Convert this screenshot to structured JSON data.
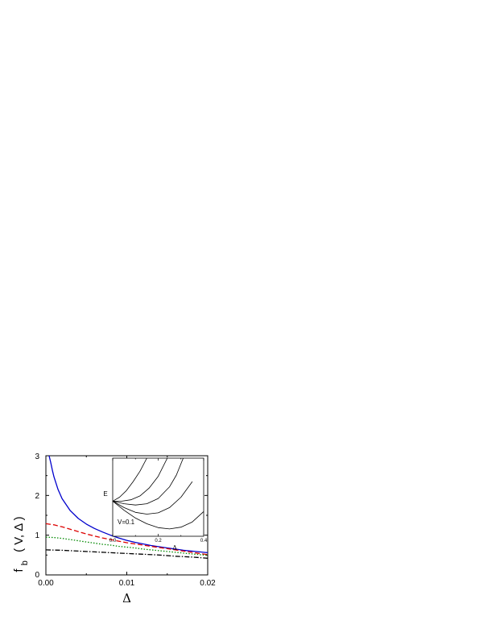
{
  "chart_data": [
    {
      "type": "line",
      "title": "",
      "xlabel": "Δ",
      "ylabel_parts": {
        "f": "f",
        "sub": "b",
        "args": "( V, Δ )"
      },
      "xlim": [
        0,
        0.02
      ],
      "ylim": [
        0,
        3
      ],
      "x_ticks": [
        0.0,
        0.01,
        0.02
      ],
      "x_tick_labels": [
        "0.00",
        "0.01",
        "0.02"
      ],
      "y_ticks": [
        0,
        1,
        2,
        3
      ],
      "y_tick_labels": [
        "0",
        "1",
        "2",
        "3"
      ],
      "grid": false,
      "series": [
        {
          "style": "solid",
          "color": "#0000cc",
          "x": [
            0.0004,
            0.0006,
            0.0008,
            0.001,
            0.0015,
            0.002,
            0.003,
            0.004,
            0.005,
            0.006,
            0.007,
            0.008,
            0.009,
            0.01,
            0.011,
            0.012,
            0.013,
            0.014,
            0.015,
            0.016,
            0.017,
            0.018,
            0.019,
            0.02
          ],
          "y": [
            3.0,
            2.83,
            2.64,
            2.47,
            2.15,
            1.92,
            1.62,
            1.42,
            1.28,
            1.17,
            1.08,
            1.0,
            0.93,
            0.87,
            0.82,
            0.78,
            0.74,
            0.71,
            0.68,
            0.65,
            0.62,
            0.6,
            0.58,
            0.56
          ]
        },
        {
          "style": "dashed",
          "color": "#dd0000",
          "x": [
            0.0,
            0.001,
            0.002,
            0.003,
            0.004,
            0.005,
            0.006,
            0.007,
            0.008,
            0.009,
            0.01,
            0.011,
            0.012,
            0.013,
            0.014,
            0.015,
            0.016,
            0.017,
            0.018,
            0.019,
            0.02
          ],
          "y": [
            1.29,
            1.26,
            1.21,
            1.15,
            1.09,
            1.03,
            0.98,
            0.93,
            0.89,
            0.85,
            0.81,
            0.78,
            0.75,
            0.72,
            0.69,
            0.66,
            0.63,
            0.6,
            0.57,
            0.54,
            0.51
          ]
        },
        {
          "style": "dotted",
          "color": "#008800",
          "x": [
            0.0,
            0.001,
            0.002,
            0.003,
            0.004,
            0.005,
            0.006,
            0.007,
            0.008,
            0.009,
            0.01,
            0.011,
            0.012,
            0.013,
            0.014,
            0.015,
            0.016,
            0.017,
            0.018,
            0.019,
            0.02
          ],
          "y": [
            0.95,
            0.94,
            0.92,
            0.89,
            0.86,
            0.83,
            0.8,
            0.77,
            0.75,
            0.72,
            0.7,
            0.68,
            0.65,
            0.63,
            0.61,
            0.59,
            0.57,
            0.55,
            0.53,
            0.51,
            0.49
          ]
        },
        {
          "style": "dashdot",
          "color": "#000000",
          "x": [
            0.0,
            0.002,
            0.004,
            0.006,
            0.008,
            0.01,
            0.012,
            0.014,
            0.016,
            0.018,
            0.02
          ],
          "y": [
            0.63,
            0.62,
            0.6,
            0.58,
            0.56,
            0.54,
            0.52,
            0.5,
            0.47,
            0.45,
            0.42
          ]
        }
      ]
    },
    {
      "type": "line",
      "title": "",
      "xlabel": "Δ",
      "ylabel": "E",
      "annotation": "V=0.1",
      "xlim": [
        0,
        0.4
      ],
      "x_ticks": [
        0.0,
        0.2,
        0.4
      ],
      "x_tick_labels": [
        "0.0",
        "0.2",
        "0.4"
      ],
      "y_ticks": [],
      "grid": false,
      "series": [
        {
          "color": "#000000",
          "x": [
            0.0,
            0.03,
            0.06,
            0.09,
            0.12,
            0.15
          ],
          "y": [
            1.85,
            2.0,
            2.25,
            2.6,
            3.0,
            3.5
          ]
        },
        {
          "color": "#000000",
          "x": [
            0.0,
            0.04,
            0.08,
            0.12,
            0.16,
            0.2,
            0.24
          ],
          "y": [
            1.85,
            1.85,
            1.9,
            2.05,
            2.35,
            2.8,
            3.5
          ]
        },
        {
          "color": "#000000",
          "x": [
            0.0,
            0.05,
            0.1,
            0.15,
            0.2,
            0.25,
            0.28,
            0.31
          ],
          "y": [
            1.85,
            1.75,
            1.7,
            1.75,
            1.95,
            2.4,
            2.85,
            3.5
          ]
        },
        {
          "color": "#000000",
          "x": [
            0.0,
            0.05,
            0.1,
            0.15,
            0.2,
            0.25,
            0.3,
            0.35
          ],
          "y": [
            1.85,
            1.6,
            1.42,
            1.35,
            1.4,
            1.6,
            2.0,
            2.6
          ]
        },
        {
          "color": "#000000",
          "x": [
            0.0,
            0.05,
            0.1,
            0.15,
            0.2,
            0.25,
            0.3,
            0.35,
            0.4
          ],
          "y": [
            1.85,
            1.5,
            1.2,
            0.98,
            0.83,
            0.78,
            0.85,
            1.05,
            1.45
          ]
        }
      ]
    }
  ]
}
